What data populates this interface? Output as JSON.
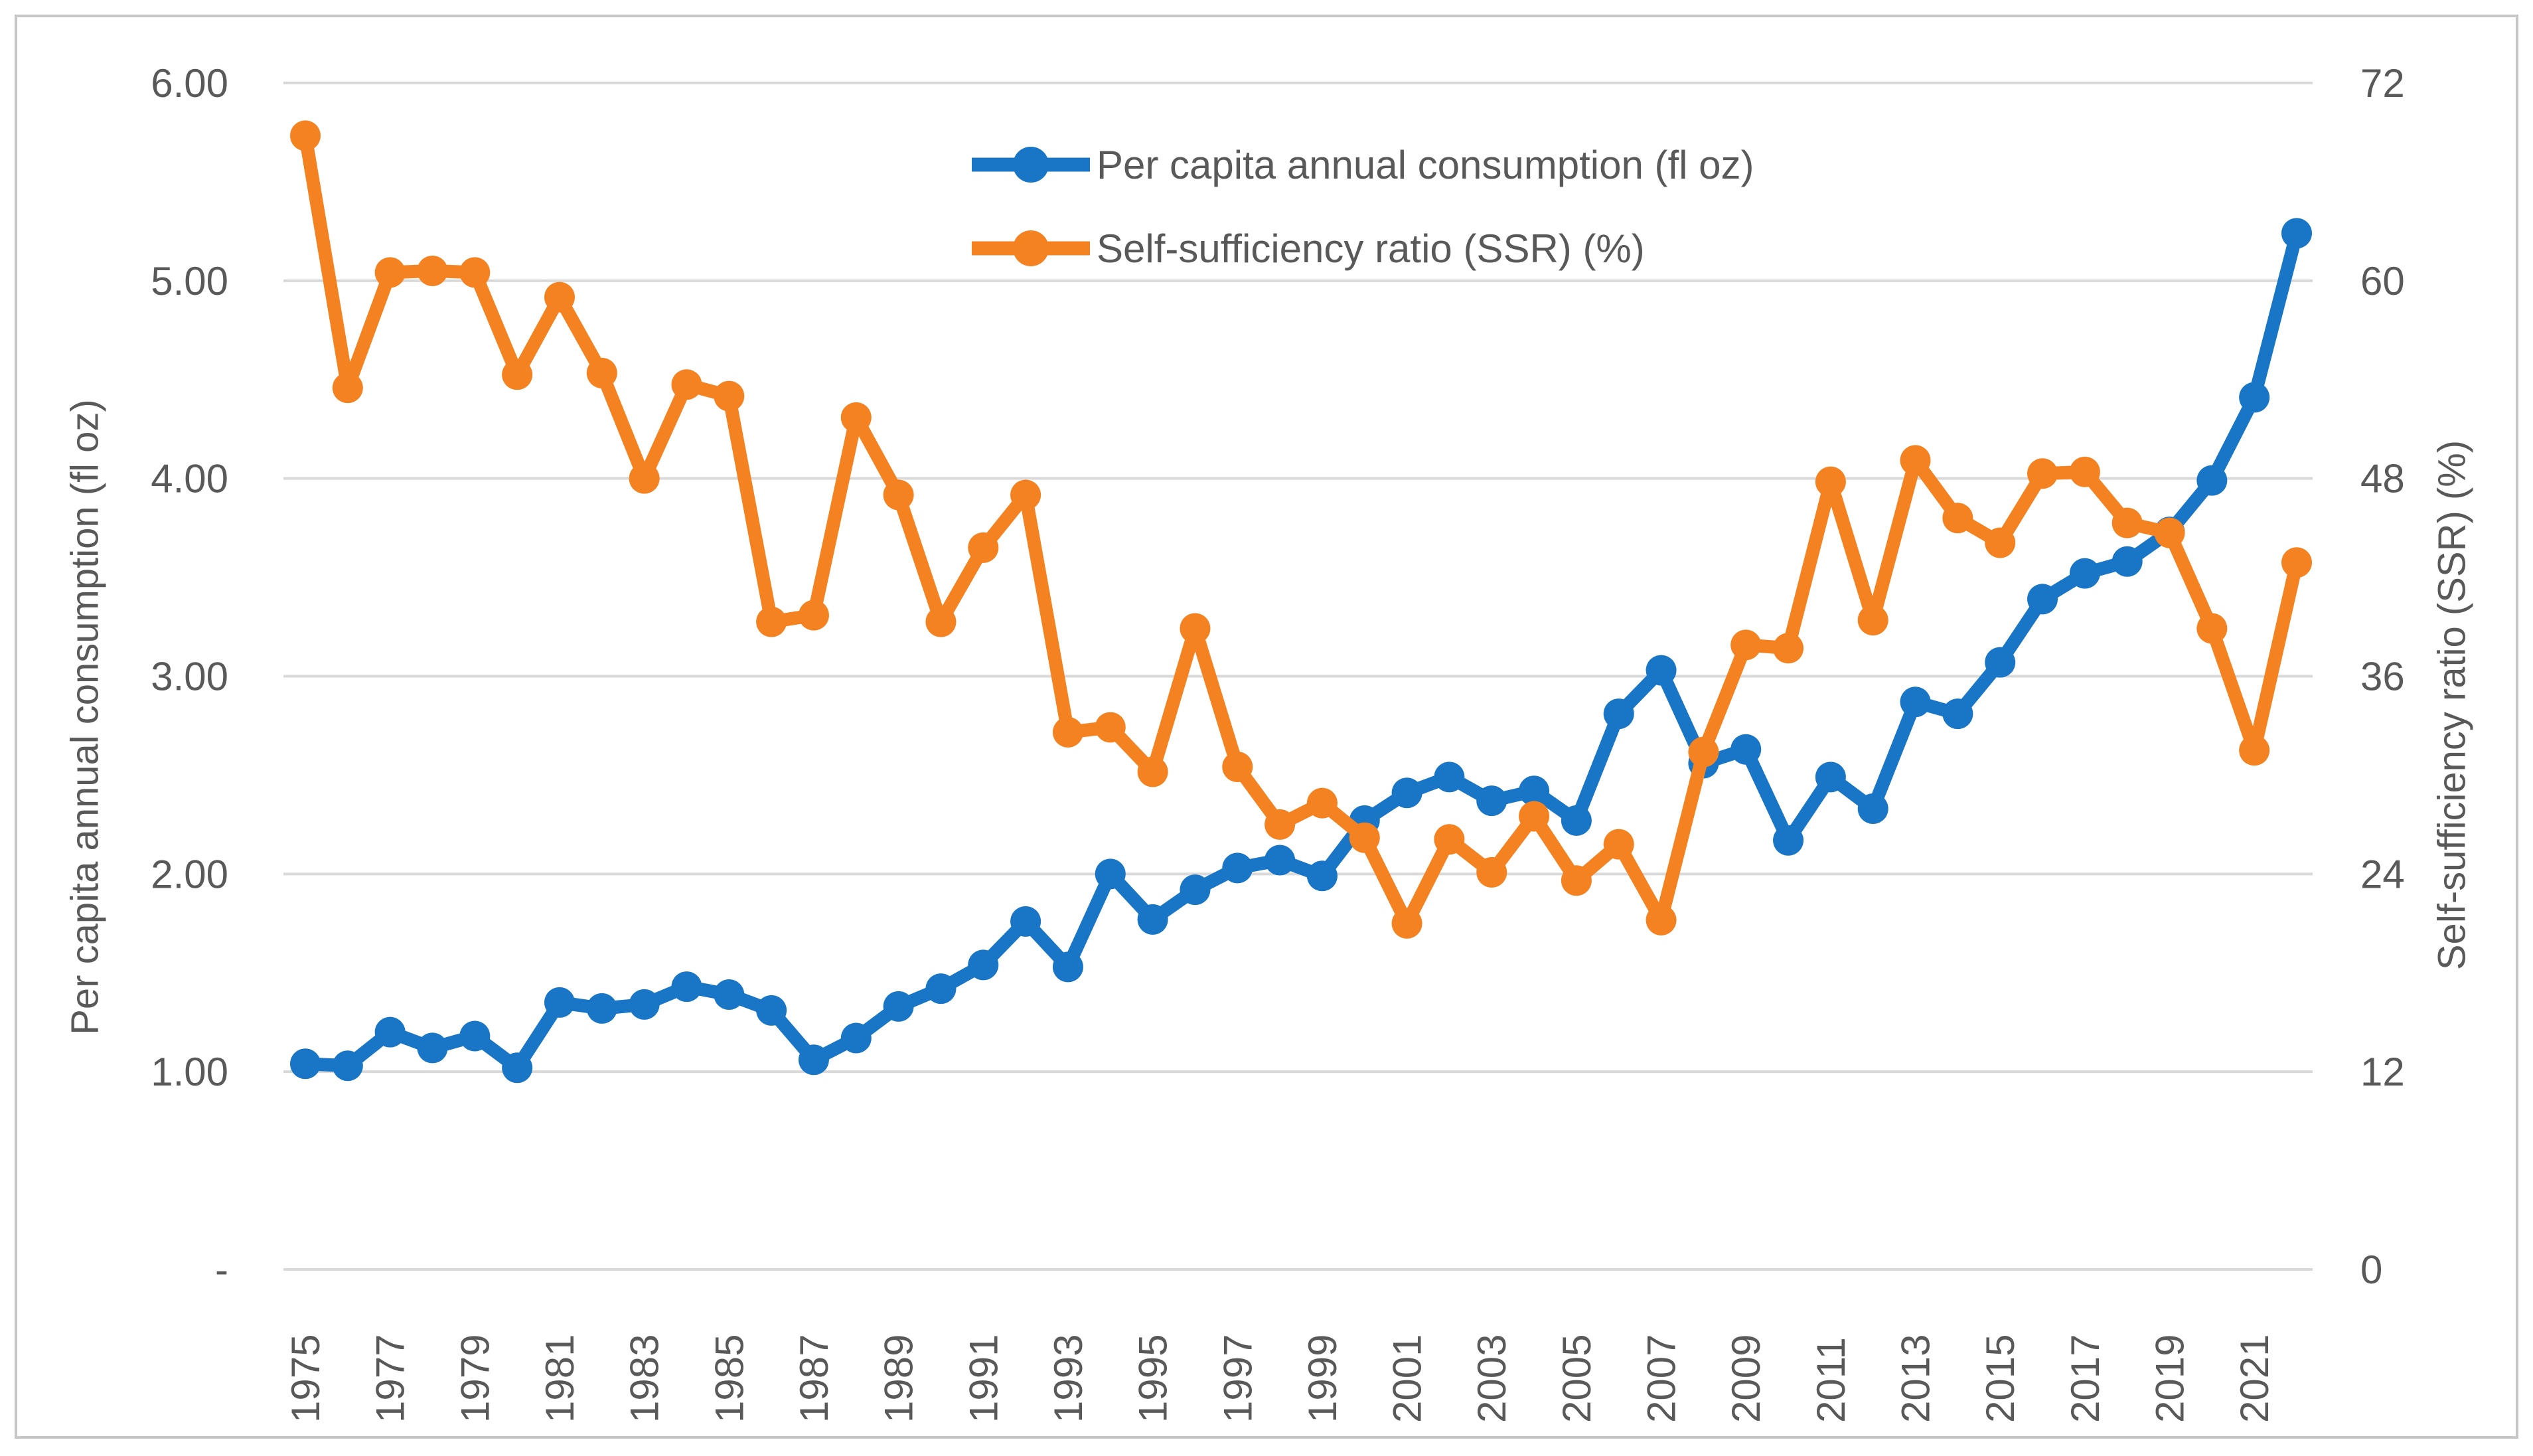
{
  "chart_data": {
    "type": "line",
    "title": "",
    "xlabel": "",
    "ylabel_left": "Per capita annual consumption (fl oz)",
    "ylabel_right": "Self-sufficiency ratio (SSR) (%)",
    "grid": true,
    "legend_position": "top-center",
    "years": [
      1975,
      1976,
      1977,
      1978,
      1979,
      1980,
      1981,
      1982,
      1983,
      1984,
      1985,
      1986,
      1987,
      1988,
      1989,
      1990,
      1991,
      1992,
      1993,
      1994,
      1995,
      1996,
      1997,
      1998,
      1999,
      2000,
      2001,
      2002,
      2003,
      2004,
      2005,
      2006,
      2007,
      2008,
      2009,
      2010,
      2011,
      2012,
      2013,
      2014,
      2015,
      2016,
      2017,
      2018,
      2019,
      2020,
      2021,
      2022
    ],
    "x_tick_labels": [
      "1975",
      "1977",
      "1979",
      "1981",
      "1983",
      "1985",
      "1987",
      "1989",
      "1991",
      "1993",
      "1995",
      "1997",
      "1999",
      "2001",
      "2003",
      "2005",
      "2007",
      "2009",
      "2011",
      "2013",
      "2015",
      "2017",
      "2019",
      "2021"
    ],
    "y_left": {
      "range": [
        0,
        6
      ],
      "tick_labels": [
        "6.00",
        "5.00",
        "4.00",
        "3.00",
        "2.00",
        "1.00",
        "-"
      ],
      "tick_values": [
        6,
        5,
        4,
        3,
        2,
        1,
        0
      ]
    },
    "y_right": {
      "range": [
        0,
        72
      ],
      "tick_labels": [
        "72",
        "60",
        "48",
        "36",
        "24",
        "12",
        "0"
      ],
      "tick_values": [
        72,
        60,
        48,
        36,
        24,
        12,
        0
      ]
    },
    "series": [
      {
        "name": "Per capita annual consumption (fl oz)",
        "axis": "left",
        "color": "#1976C6",
        "values": [
          1.04,
          1.03,
          1.2,
          1.12,
          1.18,
          1.02,
          1.35,
          1.32,
          1.34,
          1.43,
          1.39,
          1.31,
          1.06,
          1.17,
          1.33,
          1.42,
          1.54,
          1.76,
          1.53,
          2.0,
          1.77,
          1.92,
          2.03,
          2.07,
          1.99,
          2.27,
          2.41,
          2.49,
          2.37,
          2.42,
          2.27,
          2.81,
          3.03,
          2.56,
          2.63,
          2.17,
          2.49,
          2.33,
          2.87,
          2.81,
          3.07,
          3.39,
          3.52,
          3.58,
          3.73,
          3.99,
          4.41,
          5.24
        ]
      },
      {
        "name": "Self-sufficiency ratio (SSR) (%)",
        "axis": "right",
        "color": "#F58220",
        "values": [
          68.8,
          53.5,
          60.5,
          60.6,
          60.5,
          54.3,
          59.0,
          54.4,
          48.0,
          53.7,
          53.0,
          39.3,
          39.7,
          51.7,
          47.0,
          39.3,
          43.8,
          47.0,
          32.6,
          32.9,
          30.2,
          38.9,
          30.5,
          27.0,
          28.3,
          26.2,
          21.0,
          26.1,
          24.1,
          27.5,
          23.6,
          25.8,
          21.2,
          31.4,
          37.9,
          37.7,
          47.8,
          39.4,
          49.1,
          45.6,
          44.1,
          48.3,
          48.4,
          45.3,
          44.7,
          38.9,
          31.5,
          42.9
        ]
      }
    ],
    "colors": {
      "gridline": "#D9D9D9",
      "axis_text": "#595959",
      "frame_border": "#C6C6C6",
      "background": "#FFFFFF"
    }
  }
}
